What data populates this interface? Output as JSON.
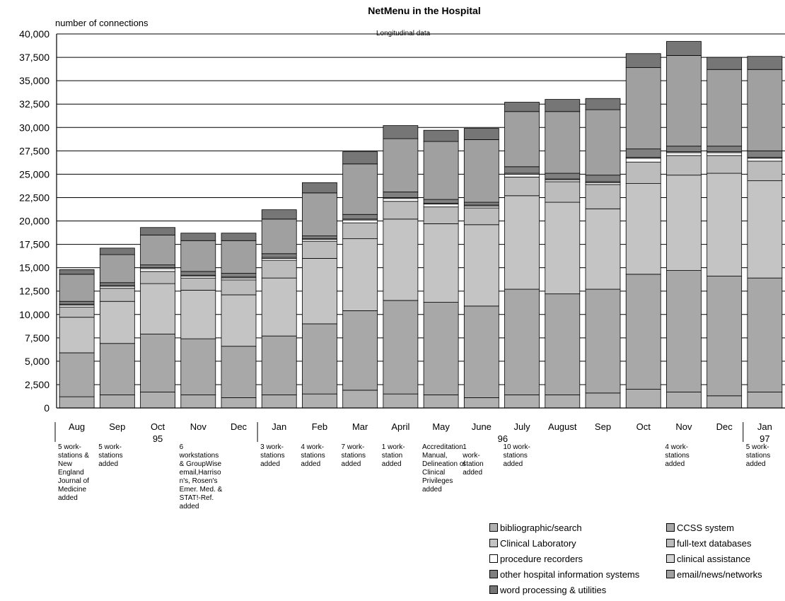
{
  "chart_data": {
    "type": "bar",
    "stacked": true,
    "title": "NetMenu in the Hospital",
    "subtitle": "Longitudinal data",
    "ylabel": "number of connections",
    "xlabel": "",
    "ylim": [
      0,
      40000
    ],
    "yticks": [
      "0",
      "2,500",
      "5,000",
      "7,500",
      "10,000",
      "12,500",
      "15,000",
      "17,500",
      "20,000",
      "22,500",
      "25,000",
      "27,500",
      "30,000",
      "32,500",
      "35,000",
      "37,500",
      "40,000"
    ],
    "grid": true,
    "legend_position": "bottom-right",
    "categories": [
      "Aug",
      "Sep",
      "Oct",
      "Nov",
      "Dec",
      "Jan",
      "Feb",
      "Mar",
      "April",
      "May",
      "June",
      "July",
      "August",
      "Sep",
      "Oct",
      "Nov",
      "Dec",
      "Jan"
    ],
    "year_labels": [
      {
        "label": "95",
        "category_index": 2
      },
      {
        "label": "96",
        "category_index": 10
      },
      {
        "label": "97",
        "category_index": 17
      }
    ],
    "annotations": [
      {
        "category_index": 0,
        "text": "5 work-\nstations &\nNew\nEngland\nJournal of\nMedicine\nadded"
      },
      {
        "category_index": 1,
        "text": "5 work-\nstations\nadded"
      },
      {
        "category_index": 3,
        "text": "6\nworkstations\n& GroupWise\nemail,Harriso\nn's, Rosen's\nEmer. Med. &\nSTAT!-Ref.\nadded"
      },
      {
        "category_index": 5,
        "text": "3 work-\nstations\nadded"
      },
      {
        "category_index": 6,
        "text": "4 work-\nstations\nadded"
      },
      {
        "category_index": 7,
        "text": "7 work-\nstations\nadded"
      },
      {
        "category_index": 8,
        "text": "1 work-\nstation\nadded"
      },
      {
        "category_index": 9,
        "text": "Accreditation\nManual,\nDelineation of\nClinical\nPrivileges\nadded"
      },
      {
        "category_index": 10,
        "text": "1\nwork-\nstation\nadded"
      },
      {
        "category_index": 11,
        "text": "10 work-\nstations\nadded"
      },
      {
        "category_index": 15,
        "text": "4 work-\nstations\nadded"
      },
      {
        "category_index": 17,
        "text": "5 work-\nstations\nadded"
      }
    ],
    "series": [
      {
        "name": "bibliographic/search",
        "color": "#b0b0b0",
        "values": [
          1200,
          1400,
          1700,
          1400,
          1100,
          1400,
          1500,
          1900,
          1500,
          1400,
          1100,
          1400,
          1400,
          1600,
          2000,
          1700,
          1300,
          1700
        ]
      },
      {
        "name": "CCSS system",
        "color": "#a8a8a8",
        "values": [
          4700,
          5500,
          6200,
          6000,
          5500,
          6300,
          7500,
          8500,
          10000,
          9900,
          9800,
          11300,
          10800,
          11100,
          12300,
          13000,
          12800,
          12200
        ]
      },
      {
        "name": "Clinical Laboratory",
        "color": "#c4c4c4",
        "values": [
          3800,
          4500,
          5400,
          5200,
          5500,
          6200,
          7000,
          7700,
          8700,
          8400,
          8700,
          10000,
          9800,
          8600,
          9700,
          10200,
          11000,
          10400
        ]
      },
      {
        "name": "full-text databases",
        "color": "#bcbcbc",
        "values": [
          1100,
          1400,
          1300,
          1300,
          1600,
          1900,
          1800,
          1700,
          1900,
          1800,
          1800,
          2000,
          2200,
          2600,
          2300,
          2100,
          1900,
          2100
        ]
      },
      {
        "name": "procedure recorders",
        "color": "#ffffff",
        "values": [
          200,
          200,
          300,
          200,
          200,
          200,
          200,
          300,
          300,
          300,
          200,
          300,
          200,
          200,
          400,
          300,
          300,
          300
        ]
      },
      {
        "name": "clinical assistance",
        "color": "#d4d4d4",
        "values": [
          100,
          100,
          100,
          100,
          100,
          100,
          100,
          100,
          100,
          100,
          100,
          100,
          100,
          100,
          100,
          100,
          100,
          100
        ]
      },
      {
        "name": "other hospital information systems",
        "color": "#808080",
        "values": [
          300,
          300,
          300,
          400,
          400,
          400,
          300,
          500,
          600,
          400,
          300,
          700,
          600,
          700,
          900,
          600,
          600,
          700
        ]
      },
      {
        "name": "email/news/networks",
        "color": "#a0a0a0",
        "values": [
          2900,
          3000,
          3200,
          3300,
          3500,
          3700,
          4600,
          5400,
          5700,
          6200,
          6700,
          5900,
          6600,
          7000,
          8700,
          9700,
          8200,
          8700
        ]
      },
      {
        "name": "word processing & utilities",
        "color": "#767676",
        "values": [
          500,
          700,
          800,
          800,
          800,
          1000,
          1100,
          1300,
          1400,
          1200,
          1200,
          1000,
          1300,
          1200,
          1500,
          1500,
          1300,
          1400
        ]
      }
    ]
  },
  "legend": {
    "items": [
      {
        "label": "bibliographic/search",
        "color": "#b0b0b0"
      },
      {
        "label": "CCSS system",
        "color": "#a8a8a8"
      },
      {
        "label": "Clinical Laboratory",
        "color": "#c4c4c4"
      },
      {
        "label": "full-text databases",
        "color": "#bcbcbc"
      },
      {
        "label": "procedure recorders",
        "color": "#ffffff"
      },
      {
        "label": "clinical assistance",
        "color": "#d4d4d4"
      },
      {
        "label": "other hospital information systems",
        "color": "#808080"
      },
      {
        "label": "email/news/networks",
        "color": "#a0a0a0"
      },
      {
        "label": "word processing & utilities",
        "color": "#767676"
      }
    ]
  }
}
